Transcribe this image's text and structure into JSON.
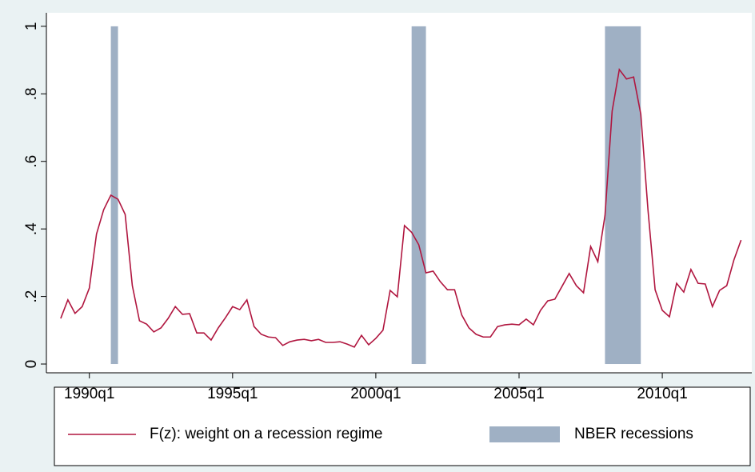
{
  "chart_data": {
    "type": "line",
    "x": [
      116,
      117,
      118,
      119,
      120,
      121,
      122,
      123,
      124,
      125,
      126,
      127,
      128,
      129,
      130,
      131,
      132,
      133,
      134,
      135,
      136,
      137,
      138,
      139,
      140,
      141,
      142,
      143,
      144,
      145,
      146,
      147,
      148,
      149,
      150,
      151,
      152,
      153,
      154,
      155,
      156,
      157,
      158,
      159,
      160,
      161,
      162,
      163,
      164,
      165,
      166,
      167,
      168,
      169,
      170,
      171,
      172,
      173,
      174,
      175,
      176,
      177,
      178,
      179,
      180,
      181,
      182,
      183,
      184,
      185,
      186,
      187,
      188,
      189,
      190,
      191,
      192,
      193,
      194,
      195,
      196,
      197,
      198,
      199,
      200,
      201,
      202,
      203,
      204,
      205,
      206,
      207,
      208,
      209,
      210,
      211
    ],
    "series": [
      {
        "name": "F(z): weight on a recession regime",
        "color": "#b0163f",
        "values": [
          0.135,
          0.19,
          0.15,
          0.17,
          0.225,
          0.385,
          0.457,
          0.5,
          0.488,
          0.443,
          0.232,
          0.128,
          0.118,
          0.095,
          0.107,
          0.135,
          0.17,
          0.147,
          0.149,
          0.092,
          0.092,
          0.071,
          0.107,
          0.137,
          0.17,
          0.161,
          0.19,
          0.111,
          0.088,
          0.08,
          0.078,
          0.055,
          0.066,
          0.071,
          0.073,
          0.069,
          0.073,
          0.064,
          0.064,
          0.066,
          0.059,
          0.05,
          0.085,
          0.057,
          0.076,
          0.1,
          0.218,
          0.199,
          0.41,
          0.39,
          0.353,
          0.27,
          0.275,
          0.244,
          0.22,
          0.22,
          0.145,
          0.107,
          0.088,
          0.08,
          0.08,
          0.111,
          0.116,
          0.118,
          0.116,
          0.133,
          0.116,
          0.159,
          0.187,
          0.192,
          0.23,
          0.268,
          0.232,
          0.211,
          0.348,
          0.303,
          0.44,
          0.749,
          0.872,
          0.844,
          0.85,
          0.74,
          0.457,
          0.22,
          0.159,
          0.14,
          0.239,
          0.213,
          0.28,
          0.239,
          0.237,
          0.17,
          0.218,
          0.232,
          0.308,
          0.367
        ]
      }
    ],
    "recessions": {
      "name": "NBER recessions",
      "color": "#9fb0c4",
      "start": [
        123,
        165,
        192
      ],
      "end": [
        124,
        167,
        197
      ],
      "values": [
        1,
        1,
        1
      ]
    },
    "xlim": [
      114,
      212.5
    ],
    "xticks": [
      {
        "value": 120,
        "label": "1990q1"
      },
      {
        "value": 140,
        "label": "1995q1"
      },
      {
        "value": 160,
        "label": "2000q1"
      },
      {
        "value": 180,
        "label": "2005q1"
      },
      {
        "value": 200,
        "label": "2010q1"
      }
    ],
    "ylim": [
      -0.026,
      1.04
    ],
    "yticks": [
      0,
      {
        "value": 0.2,
        "label": ".2"
      },
      {
        "value": 0.4,
        "label": ".4"
      },
      {
        "value": 0.6,
        "label": ".6"
      },
      {
        "value": 0.8,
        "label": ".8"
      },
      1
    ]
  }
}
